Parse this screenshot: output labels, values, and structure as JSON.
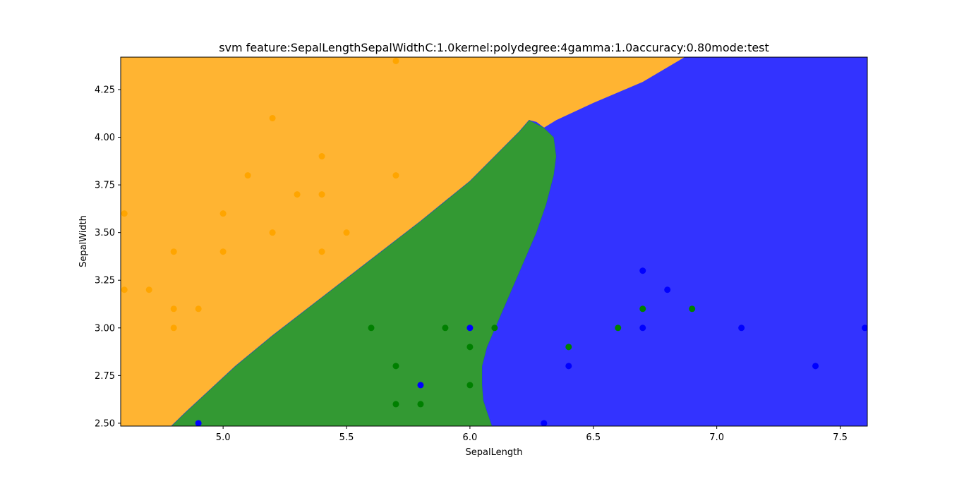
{
  "chart_data": {
    "type": "scatter",
    "title": "svm feature:SepalLengthSepalWidthC:1.0kernel:polydegree:4gamma:1.0accuracy:0.80mode:test",
    "xlabel": "SepalLength",
    "ylabel": "SepalWidth",
    "xlim": [
      4.585,
      7.61
    ],
    "ylim": [
      2.485,
      4.42
    ],
    "grid": false,
    "x_ticks": [
      {
        "value": 5.0,
        "label": "5.0"
      },
      {
        "value": 5.5,
        "label": "5.5"
      },
      {
        "value": 6.0,
        "label": "6.0"
      },
      {
        "value": 6.5,
        "label": "6.5"
      },
      {
        "value": 7.0,
        "label": "7.0"
      },
      {
        "value": 7.5,
        "label": "7.5"
      }
    ],
    "y_ticks": [
      {
        "value": 2.5,
        "label": "2.50"
      },
      {
        "value": 2.75,
        "label": "2.75"
      },
      {
        "value": 3.0,
        "label": "3.00"
      },
      {
        "value": 3.25,
        "label": "3.25"
      },
      {
        "value": 3.5,
        "label": "3.50"
      },
      {
        "value": 3.75,
        "label": "3.75"
      },
      {
        "value": 4.0,
        "label": "4.00"
      },
      {
        "value": 4.25,
        "label": "4.25"
      }
    ],
    "regions": [
      {
        "class": "orange",
        "color": "#ffb432"
      },
      {
        "class": "green",
        "color": "#339933"
      },
      {
        "class": "blue",
        "color": "#3333ff"
      }
    ],
    "boundaries": {
      "orange_lower": [
        [
          4.79,
          2.485
        ],
        [
          4.85,
          2.56
        ],
        [
          4.95,
          2.68
        ],
        [
          5.05,
          2.8
        ],
        [
          5.2,
          2.96
        ],
        [
          5.4,
          3.16
        ],
        [
          5.6,
          3.36
        ],
        [
          5.8,
          3.56
        ],
        [
          6.0,
          3.77
        ],
        [
          6.1,
          3.9
        ],
        [
          6.2,
          4.03
        ],
        [
          6.24,
          4.09
        ],
        [
          6.27,
          4.08
        ],
        [
          6.3,
          4.05
        ],
        [
          6.35,
          4.09
        ],
        [
          6.5,
          4.18
        ],
        [
          6.7,
          4.29
        ],
        [
          6.87,
          4.42
        ]
      ],
      "green_right": [
        [
          6.24,
          4.09
        ],
        [
          6.3,
          4.05
        ],
        [
          6.34,
          4.0
        ],
        [
          6.35,
          3.9
        ],
        [
          6.34,
          3.8
        ],
        [
          6.31,
          3.65
        ],
        [
          6.27,
          3.5
        ],
        [
          6.22,
          3.35
        ],
        [
          6.17,
          3.2
        ],
        [
          6.12,
          3.05
        ],
        [
          6.07,
          2.9
        ],
        [
          6.05,
          2.8
        ],
        [
          6.05,
          2.7
        ],
        [
          6.055,
          2.62
        ],
        [
          6.07,
          2.56
        ],
        [
          6.09,
          2.485
        ]
      ]
    },
    "series": [
      {
        "class": "orange",
        "color": "#ffa500",
        "points": [
          [
            4.6,
            3.6
          ],
          [
            4.6,
            3.2
          ],
          [
            4.7,
            3.2
          ],
          [
            4.8,
            3.4
          ],
          [
            4.8,
            3.1
          ],
          [
            4.8,
            3.0
          ],
          [
            4.9,
            3.1
          ],
          [
            5.0,
            3.6
          ],
          [
            5.0,
            3.4
          ],
          [
            5.1,
            3.8
          ],
          [
            5.2,
            4.1
          ],
          [
            5.2,
            3.5
          ],
          [
            5.3,
            3.7
          ],
          [
            5.4,
            3.9
          ],
          [
            5.4,
            3.7
          ],
          [
            5.4,
            3.4
          ],
          [
            5.5,
            3.5
          ],
          [
            5.7,
            4.4
          ],
          [
            5.7,
            3.8
          ]
        ]
      },
      {
        "class": "green",
        "color": "#008000",
        "points": [
          [
            5.6,
            3.0
          ],
          [
            5.7,
            2.8
          ],
          [
            5.7,
            2.6
          ],
          [
            5.8,
            2.6
          ],
          [
            5.9,
            3.0
          ],
          [
            6.0,
            2.9
          ],
          [
            6.0,
            2.7
          ],
          [
            6.1,
            3.0
          ],
          [
            6.4,
            2.9
          ],
          [
            6.6,
            3.0
          ],
          [
            6.7,
            3.1
          ],
          [
            6.9,
            3.1
          ]
        ]
      },
      {
        "class": "blue",
        "color": "#0000ff",
        "points": [
          [
            4.9,
            2.5
          ],
          [
            5.8,
            2.7
          ],
          [
            6.0,
            3.0
          ],
          [
            6.3,
            2.5
          ],
          [
            6.4,
            2.8
          ],
          [
            6.7,
            3.3
          ],
          [
            6.7,
            3.0
          ],
          [
            6.8,
            3.2
          ],
          [
            7.1,
            3.0
          ],
          [
            7.4,
            2.8
          ],
          [
            7.6,
            3.0
          ]
        ]
      }
    ]
  }
}
